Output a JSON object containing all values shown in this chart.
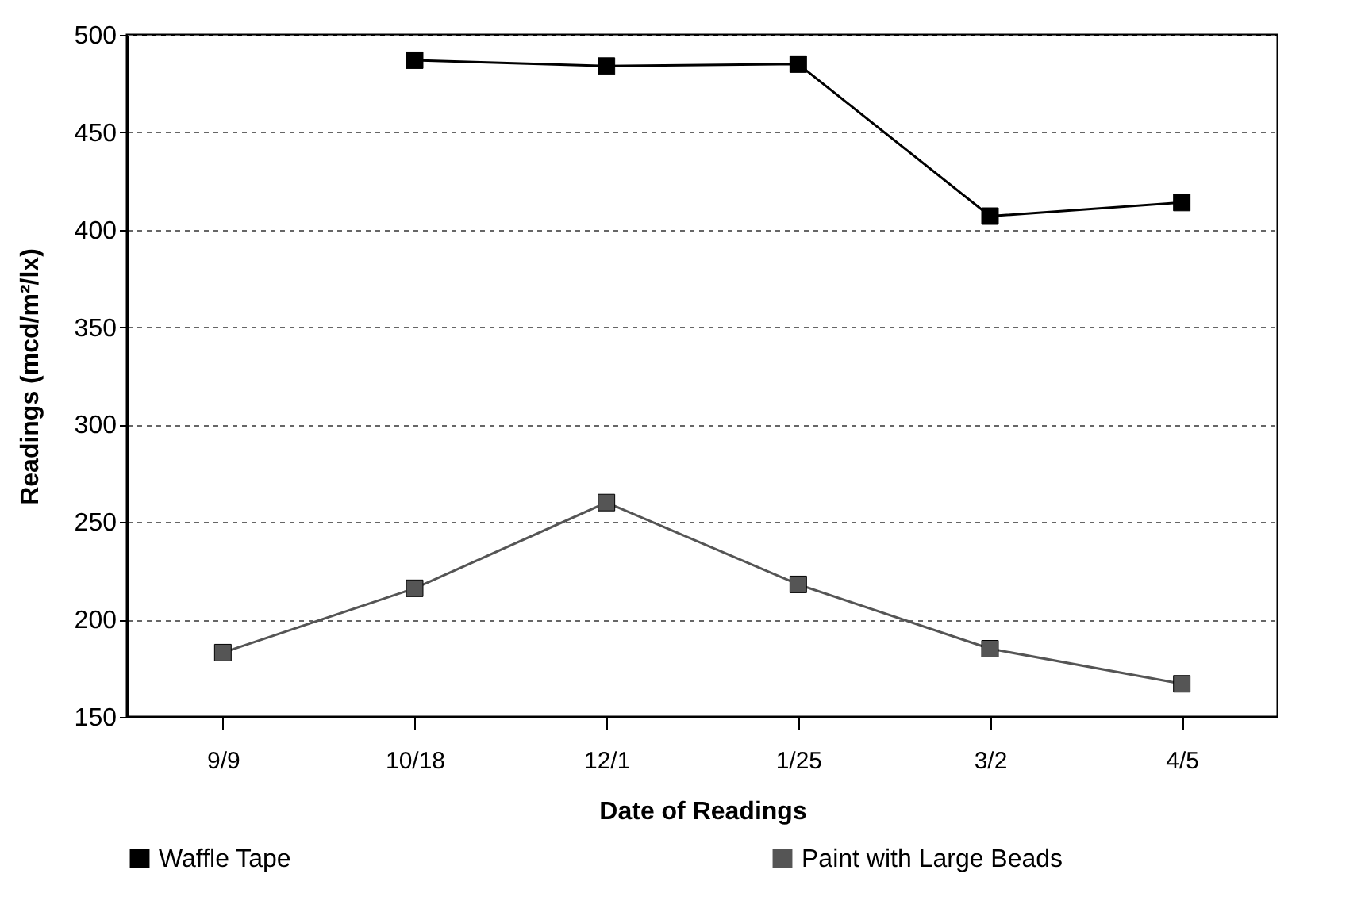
{
  "chart_data": {
    "type": "line",
    "xlabel": "Date of Readings",
    "ylabel": "Readings (mcd/m²/lx)",
    "categories": [
      "9/9",
      "10/18",
      "12/1",
      "1/25",
      "3/2",
      "4/5"
    ],
    "series": [
      {
        "name": "Waffle Tape",
        "color": "#000000",
        "values": [
          null,
          487,
          484,
          485,
          407,
          414
        ]
      },
      {
        "name": "Paint with Large Beads",
        "color": "#555555",
        "values": [
          183,
          216,
          260,
          218,
          185,
          167
        ]
      }
    ],
    "ylim": [
      150,
      500
    ],
    "yticks": [
      150,
      200,
      250,
      300,
      350,
      400,
      450,
      500
    ],
    "grid": "y",
    "legend": "bottom",
    "marker": "square",
    "line_style": "solid"
  }
}
